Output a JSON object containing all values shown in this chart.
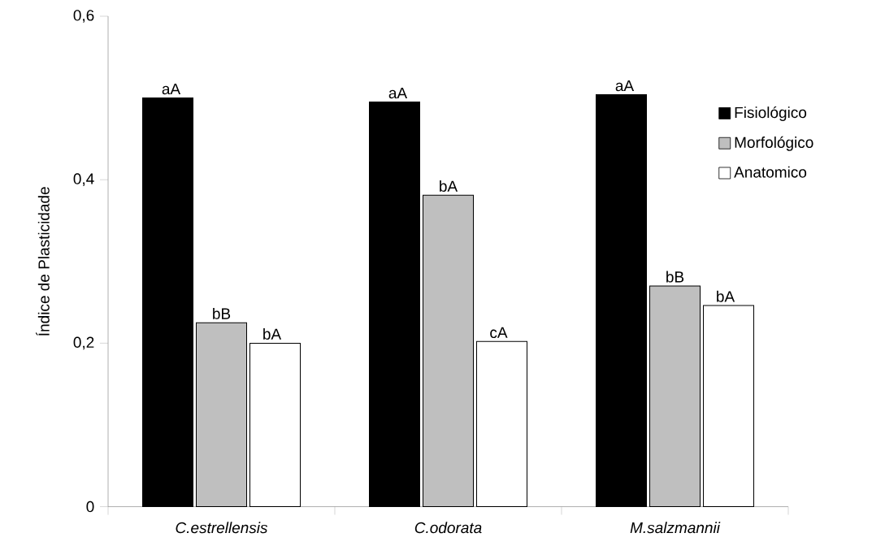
{
  "chart_data": {
    "type": "bar",
    "ylabel": "Índice de Plasticidade",
    "categories": [
      "C.estrellensis",
      "C.odorata",
      "M.salzmannii"
    ],
    "series": [
      {
        "name": "Fisiológico",
        "color": "#000000",
        "values": [
          0.5,
          0.495,
          0.504
        ],
        "value_labels": [
          "aA",
          "aA",
          "aA"
        ]
      },
      {
        "name": "Morfológico",
        "color": "#bfbfbf",
        "values": [
          0.225,
          0.381,
          0.27
        ],
        "value_labels": [
          "bB",
          "bA",
          "bB"
        ]
      },
      {
        "name": "Anatomico",
        "color": "#ffffff",
        "values": [
          0.2,
          0.202,
          0.246
        ],
        "value_labels": [
          "bA",
          "cA",
          "bA"
        ]
      }
    ],
    "ylim": [
      0,
      0.6
    ],
    "yticks": [
      0,
      {
        "value": 0.2,
        "label": "0,2"
      },
      {
        "value": 0.4,
        "label": "0,4"
      },
      {
        "value": 0.6,
        "label": "0,6"
      }
    ],
    "legend": "right",
    "grid": false
  }
}
